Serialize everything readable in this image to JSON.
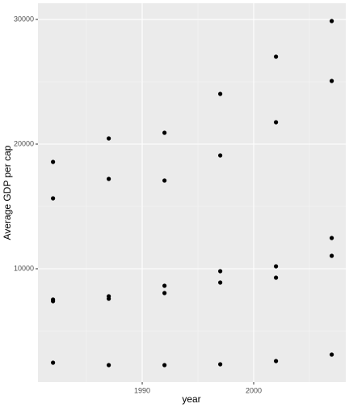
{
  "chart_data": {
    "type": "scatter",
    "x_label": "year",
    "y_label": "Average GDP per cap",
    "x": [
      1982,
      1982,
      1982,
      1982,
      1982,
      1987,
      1987,
      1987,
      1987,
      1987,
      1992,
      1992,
      1992,
      1992,
      1992,
      1997,
      1997,
      1997,
      1997,
      1997,
      2002,
      2002,
      2002,
      2002,
      2002,
      2007,
      2007,
      2007,
      2007,
      2007
    ],
    "values": [
      18571,
      15649,
      7532,
      7403,
      2468,
      20455,
      17208,
      7792,
      7597,
      2273,
      20909,
      17078,
      8636,
      8052,
      2273,
      24026,
      19091,
      9805,
      8896,
      2338,
      27013,
      21753,
      10195,
      9286,
      2597,
      29870,
      25065,
      12468,
      11039,
      3117
    ],
    "color": "#000000",
    "xlim": [
      1980.65,
      2008.26
    ],
    "xticks": [
      1990,
      2000
    ],
    "ylim": [
      909,
      31300
    ],
    "yticks": [
      10000,
      20000,
      30000
    ],
    "grid": true
  }
}
